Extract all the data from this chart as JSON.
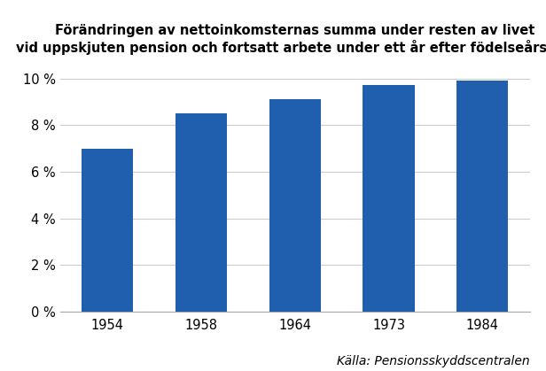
{
  "categories": [
    "1954",
    "1958",
    "1964",
    "1973",
    "1984"
  ],
  "values": [
    7.0,
    8.5,
    9.1,
    9.7,
    9.9
  ],
  "bar_color": "#1F5FAD",
  "title_line1": "Förändringen av nettoinkomsternas summa under resten av livet",
  "title_line2": "vid uppskjuten pension och fortsatt arbete under ett år efter födelseårskull",
  "ylim": [
    0,
    10.5
  ],
  "yticks": [
    0,
    2,
    4,
    6,
    8,
    10
  ],
  "ytick_labels": [
    "0 %",
    "2 %",
    "4 %",
    "6 %",
    "8 %",
    "10 %"
  ],
  "source_text": "Källa: Pensionsskyddscentralen",
  "title_fontsize": 10.5,
  "tick_fontsize": 10.5,
  "source_fontsize": 10,
  "background_color": "#ffffff"
}
